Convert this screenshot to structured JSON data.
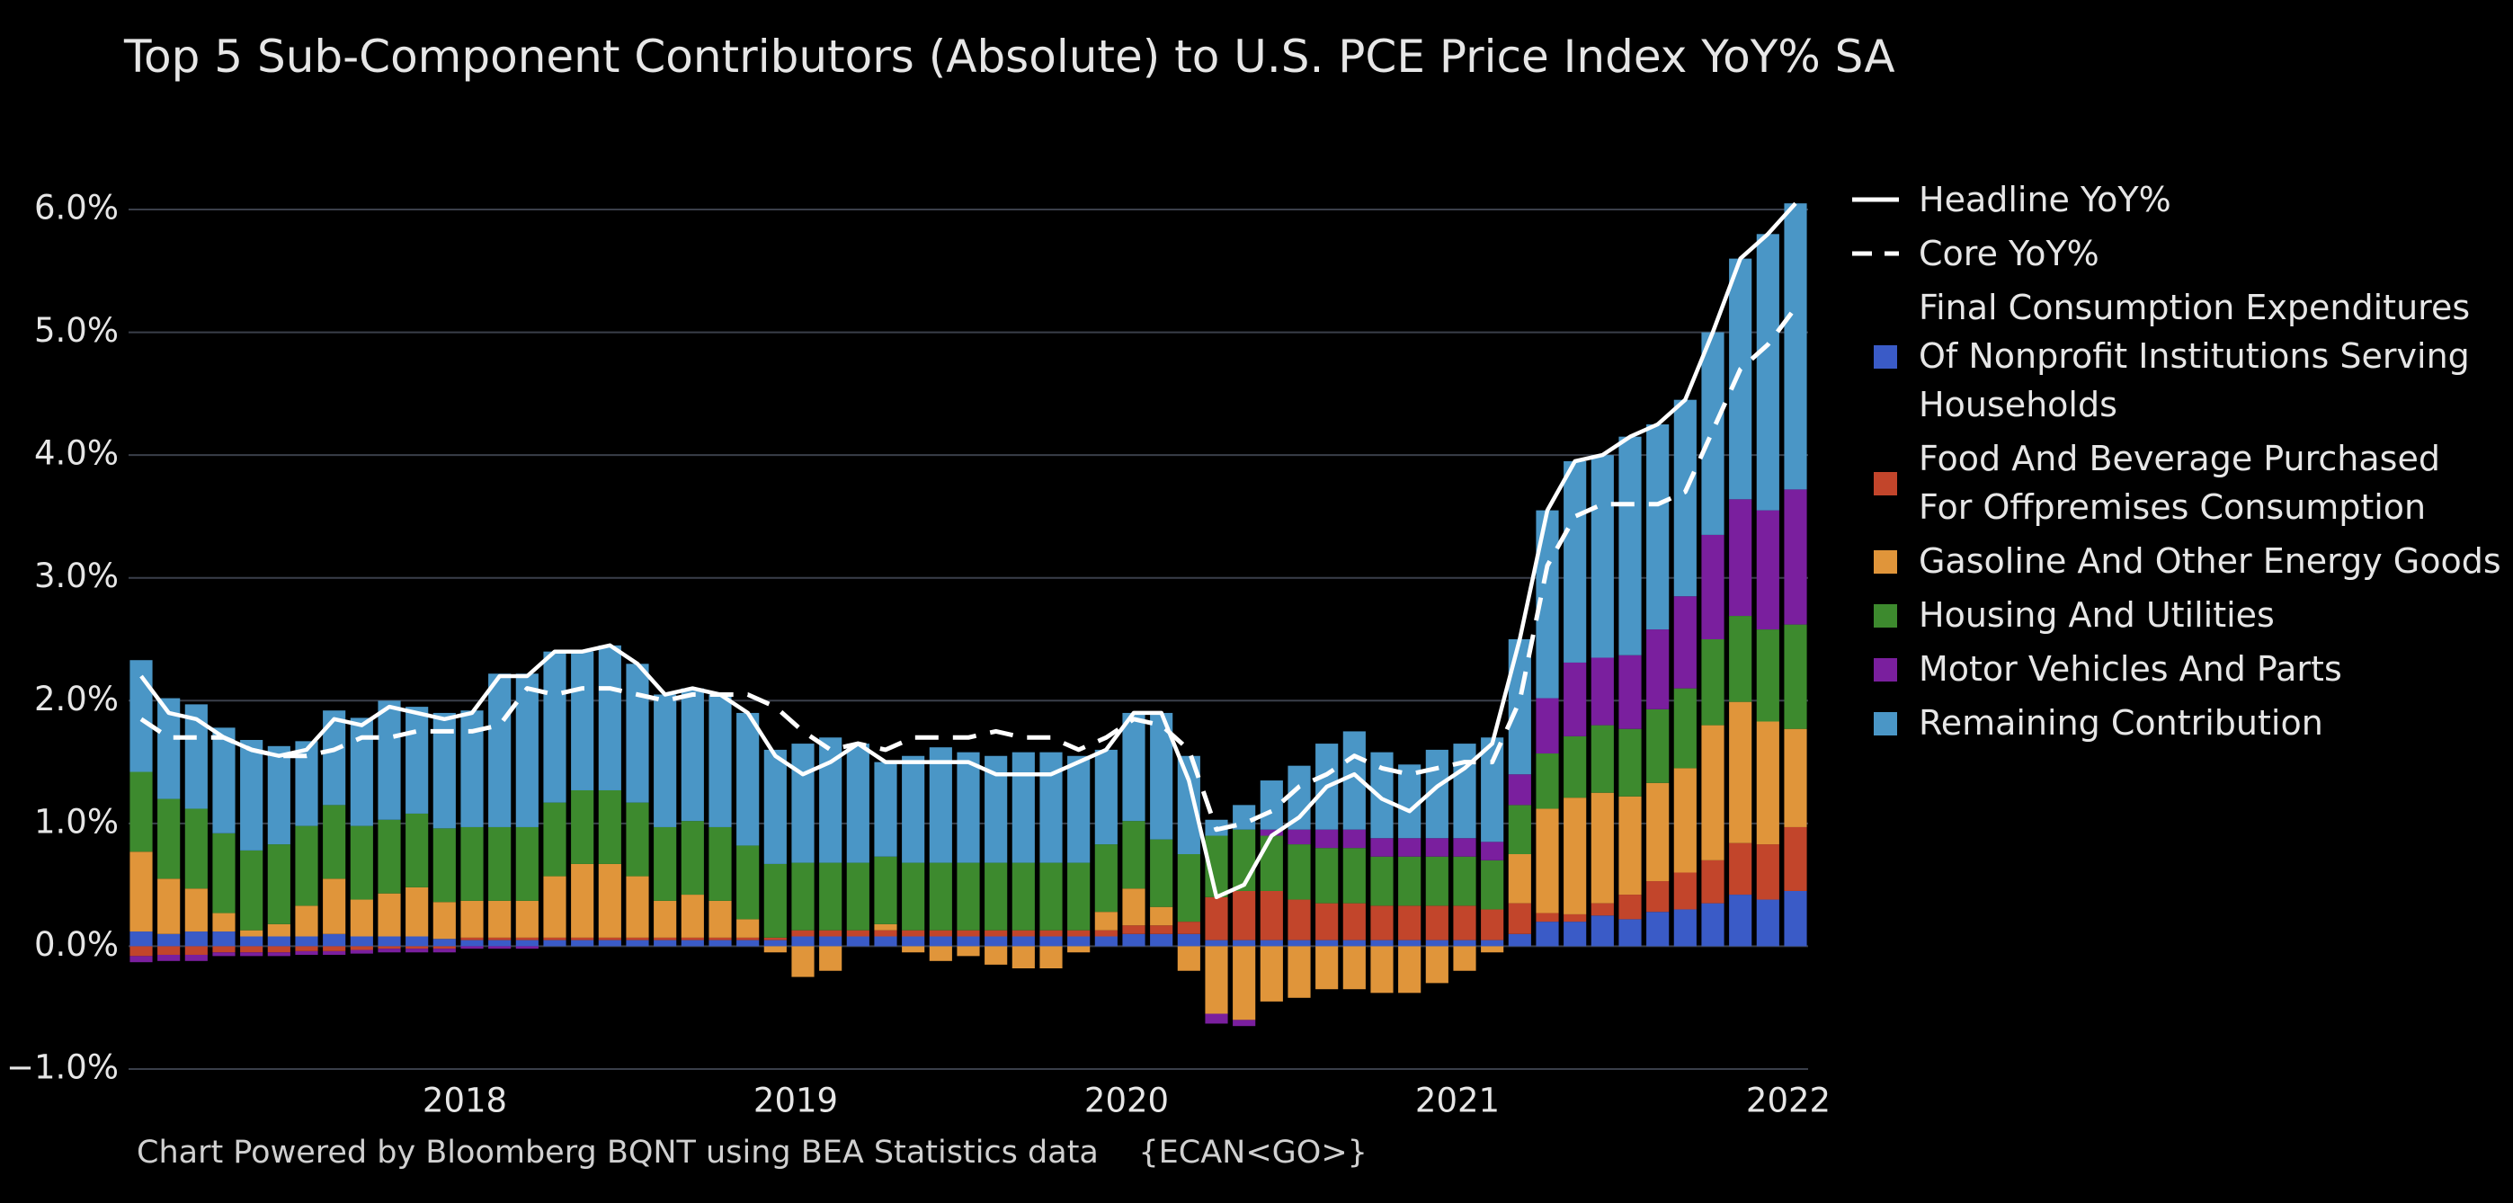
{
  "chart_data": {
    "type": "bar",
    "stacked": true,
    "title": "Top 5 Sub-Component Contributors (Absolute) to U.S. PCE Price Index YoY% SA",
    "source": "Chart Powered by Bloomberg BQNT using BEA Statistics data    {ECAN<GO>}",
    "categories": [
      null,
      null,
      null,
      null,
      null,
      null,
      null,
      null,
      null,
      null,
      null,
      null,
      "2018",
      null,
      null,
      null,
      null,
      null,
      null,
      null,
      null,
      null,
      null,
      null,
      "2019",
      null,
      null,
      null,
      null,
      null,
      null,
      null,
      null,
      null,
      null,
      null,
      "2020",
      null,
      null,
      null,
      null,
      null,
      null,
      null,
      null,
      null,
      null,
      null,
      "2021",
      null,
      null,
      null,
      null,
      null,
      null,
      null,
      null,
      null,
      null,
      null,
      "2022"
    ],
    "ylim": [
      -1,
      6
    ],
    "yticks": [
      {
        "value": -1,
        "label": "−1.0%"
      },
      {
        "value": 0,
        "label": "0.0%"
      },
      {
        "value": 1,
        "label": "1.0%"
      },
      {
        "value": 2,
        "label": "2.0%"
      },
      {
        "value": 3,
        "label": "3.0%"
      },
      {
        "value": 4,
        "label": "4.0%"
      },
      {
        "value": 5,
        "label": "5.0%"
      },
      {
        "value": 6,
        "label": "6.0%"
      }
    ],
    "grid": true,
    "legend": "right",
    "series": [
      {
        "name": "Final Consumption Expenditures Of Nonprofit Institutions Serving Households",
        "color": "#3a5bc7",
        "values": [
          0.12,
          0.1,
          0.12,
          0.12,
          0.08,
          0.08,
          0.08,
          0.1,
          0.08,
          0.08,
          0.08,
          0.06,
          0.05,
          0.05,
          0.05,
          0.05,
          0.05,
          0.05,
          0.05,
          0.05,
          0.05,
          0.05,
          0.05,
          0.05,
          0.08,
          0.08,
          0.08,
          0.08,
          0.08,
          0.08,
          0.08,
          0.08,
          0.08,
          0.08,
          0.08,
          0.08,
          0.1,
          0.1,
          0.1,
          0.05,
          0.05,
          0.05,
          0.05,
          0.05,
          0.05,
          0.05,
          0.05,
          0.05,
          0.05,
          0.05,
          0.1,
          0.2,
          0.2,
          0.25,
          0.22,
          0.28,
          0.3,
          0.35,
          0.42,
          0.38,
          0.45
        ]
      },
      {
        "name": "Food And Beverage Purchased For Offpremises Consumption",
        "color": "#c2452b",
        "values": [
          -0.08,
          -0.07,
          -0.07,
          -0.05,
          -0.05,
          -0.05,
          -0.04,
          -0.04,
          -0.03,
          -0.02,
          -0.02,
          -0.02,
          0.02,
          0.02,
          0.02,
          0.02,
          0.02,
          0.02,
          0.02,
          0.02,
          0.02,
          0.02,
          0.02,
          0.02,
          0.05,
          0.05,
          0.05,
          0.05,
          0.05,
          0.05,
          0.05,
          0.05,
          0.05,
          0.05,
          0.05,
          0.05,
          0.07,
          0.07,
          0.1,
          0.35,
          0.4,
          0.4,
          0.33,
          0.3,
          0.3,
          0.28,
          0.28,
          0.28,
          0.28,
          0.25,
          0.25,
          0.07,
          0.06,
          0.1,
          0.2,
          0.25,
          0.3,
          0.35,
          0.42,
          0.45,
          0.52
        ]
      },
      {
        "name": "Gasoline And Other Energy Goods",
        "color": "#e0953a",
        "values": [
          0.65,
          0.45,
          0.35,
          0.15,
          0.05,
          0.1,
          0.25,
          0.45,
          0.3,
          0.35,
          0.4,
          0.3,
          0.3,
          0.3,
          0.3,
          0.5,
          0.6,
          0.6,
          0.5,
          0.3,
          0.35,
          0.3,
          0.15,
          -0.05,
          -0.25,
          -0.2,
          0.0,
          0.05,
          -0.05,
          -0.12,
          -0.08,
          -0.15,
          -0.18,
          -0.18,
          -0.05,
          0.15,
          0.3,
          0.15,
          -0.2,
          -0.55,
          -0.6,
          -0.45,
          -0.42,
          -0.35,
          -0.35,
          -0.38,
          -0.38,
          -0.3,
          -0.2,
          -0.05,
          0.4,
          0.85,
          0.95,
          0.9,
          0.8,
          0.8,
          0.85,
          1.1,
          1.15,
          1.0,
          0.8
        ]
      },
      {
        "name": "Housing And Utilities",
        "color": "#3d8a2e",
        "values": [
          0.65,
          0.65,
          0.65,
          0.65,
          0.65,
          0.65,
          0.65,
          0.6,
          0.6,
          0.6,
          0.6,
          0.6,
          0.6,
          0.6,
          0.6,
          0.6,
          0.6,
          0.6,
          0.6,
          0.6,
          0.6,
          0.6,
          0.6,
          0.6,
          0.55,
          0.55,
          0.55,
          0.55,
          0.55,
          0.55,
          0.55,
          0.55,
          0.55,
          0.55,
          0.55,
          0.55,
          0.55,
          0.55,
          0.55,
          0.5,
          0.5,
          0.45,
          0.45,
          0.45,
          0.45,
          0.4,
          0.4,
          0.4,
          0.4,
          0.4,
          0.4,
          0.45,
          0.5,
          0.55,
          0.55,
          0.6,
          0.65,
          0.7,
          0.7,
          0.75,
          0.85
        ]
      },
      {
        "name": "Motor Vehicles And Parts",
        "color": "#7a1f9e",
        "values": [
          -0.05,
          -0.05,
          -0.05,
          -0.03,
          -0.03,
          -0.03,
          -0.03,
          -0.03,
          -0.03,
          -0.03,
          -0.03,
          -0.03,
          -0.02,
          -0.02,
          -0.02,
          0,
          0,
          0,
          0,
          0,
          0,
          0,
          0,
          0,
          0,
          0,
          0,
          0,
          0,
          0,
          0,
          0,
          0,
          0,
          0,
          0,
          0,
          0,
          0,
          -0.08,
          -0.05,
          0.05,
          0.12,
          0.15,
          0.15,
          0.15,
          0.15,
          0.15,
          0.15,
          0.15,
          0.25,
          0.45,
          0.6,
          0.55,
          0.6,
          0.65,
          0.75,
          0.85,
          0.95,
          0.97,
          1.1
        ]
      },
      {
        "name": "Remaining Contribution",
        "color": "#4a96c6",
        "values": [
          0.91,
          0.82,
          0.85,
          0.86,
          0.9,
          0.8,
          0.69,
          0.77,
          0.88,
          0.97,
          0.87,
          0.94,
          0.95,
          1.25,
          1.25,
          1.23,
          1.13,
          1.18,
          1.13,
          1.08,
          1.08,
          1.08,
          1.08,
          0.93,
          0.97,
          1.02,
          0.97,
          0.77,
          0.87,
          0.94,
          0.9,
          0.87,
          0.9,
          0.9,
          0.87,
          0.77,
          0.88,
          1.03,
          0.8,
          0.13,
          0.2,
          0.4,
          0.52,
          0.7,
          0.8,
          0.7,
          0.6,
          0.72,
          0.77,
          0.85,
          1.1,
          1.53,
          1.64,
          1.65,
          1.78,
          1.67,
          1.6,
          1.65,
          1.96,
          2.25,
          2.33
        ]
      },
      {
        "name": "Headline YoY%",
        "type": "line",
        "dash": false,
        "color": "#ffffff",
        "values": [
          2.2,
          1.9,
          1.85,
          1.7,
          1.6,
          1.55,
          1.6,
          1.85,
          1.8,
          1.95,
          1.9,
          1.85,
          1.9,
          2.2,
          2.2,
          2.4,
          2.4,
          2.45,
          2.3,
          2.05,
          2.1,
          2.05,
          1.9,
          1.55,
          1.4,
          1.5,
          1.65,
          1.5,
          1.5,
          1.5,
          1.5,
          1.4,
          1.4,
          1.4,
          1.5,
          1.6,
          1.9,
          1.9,
          1.35,
          0.4,
          0.5,
          0.9,
          1.05,
          1.3,
          1.4,
          1.2,
          1.1,
          1.3,
          1.45,
          1.65,
          2.5,
          3.55,
          3.95,
          4.0,
          4.15,
          4.25,
          4.45,
          5.0,
          5.6,
          5.8,
          6.05
        ]
      },
      {
        "name": "Core YoY%",
        "type": "line",
        "dash": true,
        "color": "#ffffff",
        "values": [
          1.85,
          1.7,
          1.7,
          1.7,
          1.6,
          1.55,
          1.55,
          1.6,
          1.7,
          1.7,
          1.75,
          1.75,
          1.75,
          1.8,
          2.1,
          2.05,
          2.1,
          2.1,
          2.05,
          2.0,
          2.05,
          2.05,
          2.05,
          1.95,
          1.75,
          1.6,
          1.65,
          1.6,
          1.7,
          1.7,
          1.7,
          1.75,
          1.7,
          1.7,
          1.6,
          1.7,
          1.85,
          1.8,
          1.6,
          0.95,
          1.0,
          1.1,
          1.3,
          1.4,
          1.55,
          1.45,
          1.4,
          1.45,
          1.5,
          1.5,
          2.0,
          3.1,
          3.5,
          3.6,
          3.6,
          3.6,
          3.7,
          4.2,
          4.7,
          4.9,
          5.2
        ]
      }
    ]
  }
}
